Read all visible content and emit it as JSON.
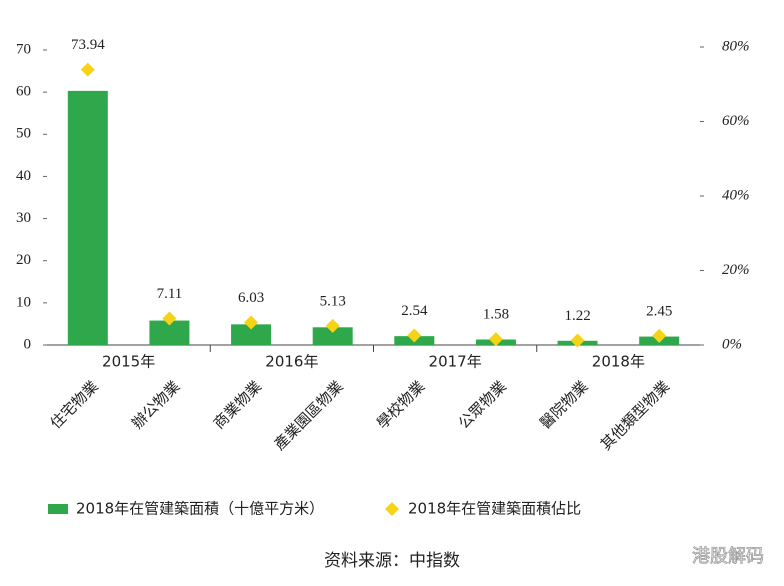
{
  "chart_data": {
    "type": "bar",
    "categories": [
      "住宅物業",
      "辦公物業",
      "商業物業",
      "產業園區物業",
      "學校物業",
      "公眾物業",
      "醫院物業",
      "其他類型物業"
    ],
    "groups": [
      "2015年",
      "2016年",
      "2017年",
      "2018年"
    ],
    "series": [
      {
        "name": "2018年在管建築面積（十億平方米）",
        "color": "#2ea84a",
        "values": [
          60.3,
          5.8,
          4.9,
          4.2,
          2.1,
          1.3,
          1.0,
          2.0
        ]
      },
      {
        "name": "2018年在管建築面積佔比",
        "color": "#f7d315",
        "axis": "y2",
        "marker": "diamond",
        "values": [
          73.94,
          7.11,
          6.03,
          5.13,
          2.54,
          1.58,
          1.22,
          2.45
        ]
      }
    ],
    "ylim": [
      0,
      70
    ],
    "yticks": [
      0,
      10,
      20,
      30,
      40,
      50,
      60,
      70
    ],
    "y2lim": [
      0,
      80
    ],
    "y2ticks": [
      {
        "value": 0,
        "label": "0%"
      },
      {
        "value": 20,
        "label": "20%"
      },
      {
        "value": 40,
        "label": "40%"
      },
      {
        "value": 60,
        "label": "60%"
      },
      {
        "value": 80,
        "label": "80%"
      }
    ],
    "legend": "bottom-left",
    "source": "资料来源：中指数",
    "watermark": "港股解码"
  }
}
